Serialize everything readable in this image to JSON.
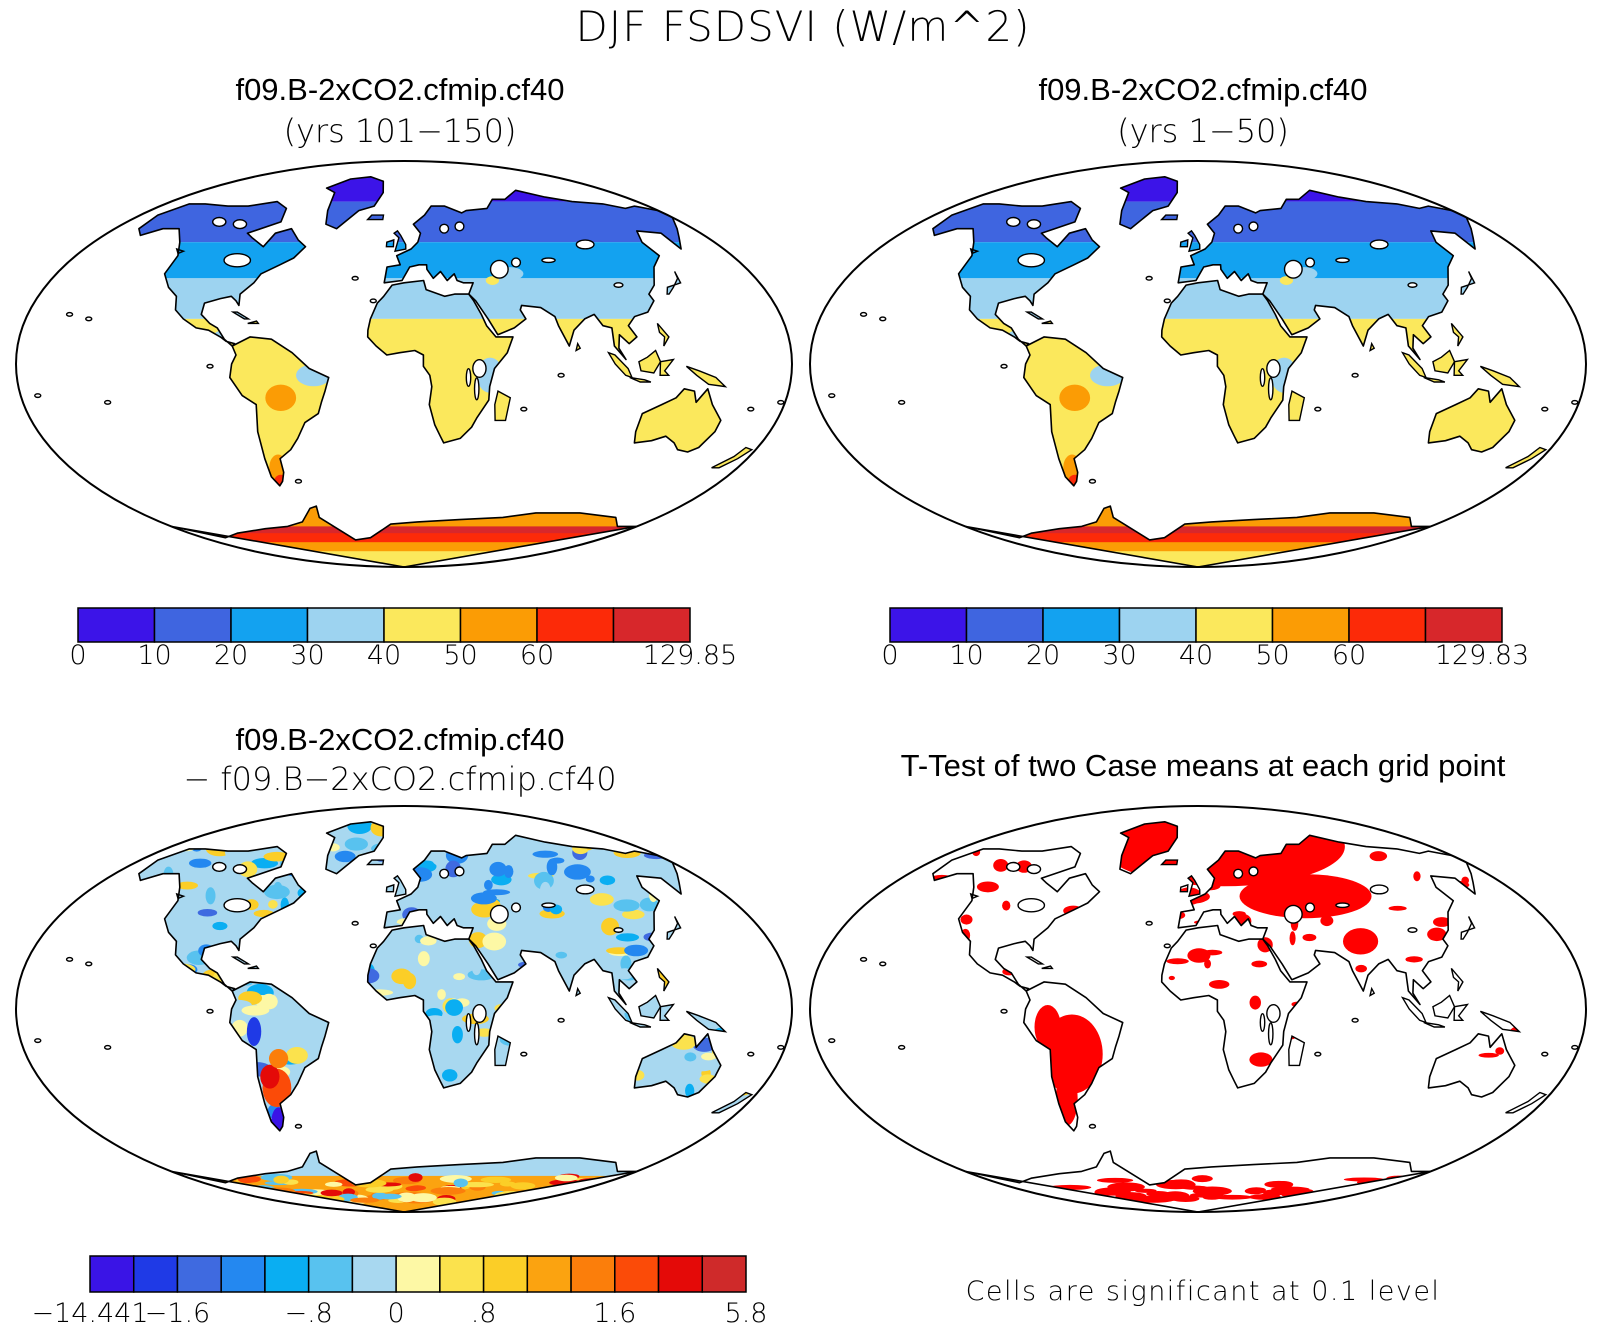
{
  "title": "DJF FSDSVI (W/m^2)",
  "panels": [
    {
      "title": "f09.B-2xCO2.cfmip.cf40",
      "subtitle": "(yrs 101−150)"
    },
    {
      "title": "f09.B-2xCO2.cfmip.cf40",
      "subtitle": "(yrs 1−50)"
    },
    {
      "title": "f09.B-2xCO2.cfmip.cf40",
      "subtitle": "− f09.B−2xCO2.cfmip.cf40"
    },
    {
      "title": "T-Test of two Case means at each grid point",
      "subtitle": ""
    }
  ],
  "colorbars": [
    {
      "colors": [
        "#3c14e8",
        "#3f65e0",
        "#13a2f0",
        "#9dd3f0",
        "#fbe85c",
        "#fb9c05",
        "#fc2a08",
        "#d7272b"
      ],
      "labels": [
        "0",
        "10",
        "20",
        "30",
        "40",
        "50",
        "60",
        "129.85"
      ]
    },
    {
      "colors": [
        "#3c14e8",
        "#3f65e0",
        "#13a2f0",
        "#9dd3f0",
        "#fbe85c",
        "#fb9c05",
        "#fc2a08",
        "#d7272b"
      ],
      "labels": [
        "0",
        "10",
        "20",
        "30",
        "40",
        "50",
        "60",
        "129.83"
      ]
    },
    {
      "colors": [
        "#3a14e6",
        "#1f3ae6",
        "#3f6ae0",
        "#2488f0",
        "#0aaef2",
        "#58c2ef",
        "#a8d8f0",
        "#fdf8a5",
        "#fbe24d",
        "#fbce27",
        "#fba310",
        "#fb7e0b",
        "#fb4b08",
        "#e40a08",
        "#cf2a2a"
      ],
      "labels": [
        "−14.441",
        "−1.6",
        "−.8",
        "0",
        ".8",
        "1.6",
        "5.8"
      ]
    }
  ],
  "significance_note": "Cells are significant at 0.1 level",
  "significance_color": "#ff0000"
}
